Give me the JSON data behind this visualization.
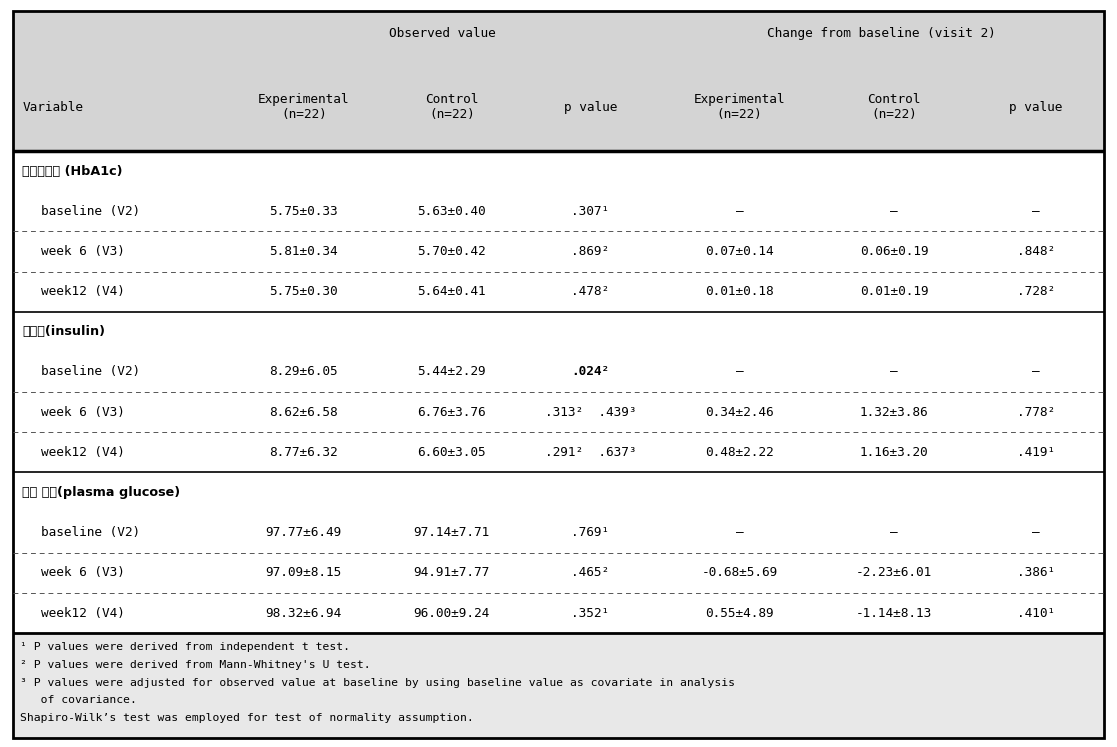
{
  "col_header1": "Observed value",
  "col_header2": "Change from baseline (visit 2)",
  "col_labels": [
    "Variable",
    "Experimental\n(n=22)",
    "Control\n(n=22)",
    "p value",
    "Experimental\n(n=22)",
    "Control\n(n=22)",
    "p value"
  ],
  "rows": [
    {
      "section": "당화혁색소 (HbA1c)",
      "label": "baseline (V2)",
      "obs_exp": "5.75±0.33",
      "obs_ctrl": "5.63±0.40",
      "obs_p": ".307¹",
      "obs_p_bold": false,
      "chg_exp": "–",
      "chg_ctrl": "–",
      "chg_p": "–"
    },
    {
      "section": null,
      "label": "week 6 (V3)",
      "obs_exp": "5.81±0.34",
      "obs_ctrl": "5.70±0.42",
      "obs_p": ".869²",
      "obs_p_bold": false,
      "chg_exp": "0.07±0.14",
      "chg_ctrl": "0.06±0.19",
      "chg_p": ".848²"
    },
    {
      "section": null,
      "label": "week12 (V4)",
      "obs_exp": "5.75±0.30",
      "obs_ctrl": "5.64±0.41",
      "obs_p": ".478²",
      "obs_p_bold": false,
      "chg_exp": "0.01±0.18",
      "chg_ctrl": "0.01±0.19",
      "chg_p": ".728²"
    },
    {
      "section": "인싈린(insulin)",
      "label": "baseline (V2)",
      "obs_exp": "8.29±6.05",
      "obs_ctrl": "5.44±2.29",
      "obs_p": ".024²",
      "obs_p_bold": true,
      "chg_exp": "–",
      "chg_ctrl": "–",
      "chg_p": "–"
    },
    {
      "section": null,
      "label": "week 6 (V3)",
      "obs_exp": "8.62±6.58",
      "obs_ctrl": "6.76±3.76",
      "obs_p": ".313²  .439³",
      "obs_p_bold": false,
      "chg_exp": "0.34±2.46",
      "chg_ctrl": "1.32±3.86",
      "chg_p": ".778²"
    },
    {
      "section": null,
      "label": "week12 (V4)",
      "obs_exp": "8.77±6.32",
      "obs_ctrl": "6.60±3.05",
      "obs_p": ".291²  .637³",
      "obs_p_bold": false,
      "chg_exp": "0.48±2.22",
      "chg_ctrl": "1.16±3.20",
      "chg_p": ".419¹"
    },
    {
      "section": "혁중 혁당(plasma glucose)",
      "label": "baseline (V2)",
      "obs_exp": "97.77±6.49",
      "obs_ctrl": "97.14±7.71",
      "obs_p": ".769¹",
      "obs_p_bold": false,
      "chg_exp": "–",
      "chg_ctrl": "–",
      "chg_p": "–"
    },
    {
      "section": null,
      "label": "week 6 (V3)",
      "obs_exp": "97.09±8.15",
      "obs_ctrl": "94.91±7.77",
      "obs_p": ".465²",
      "obs_p_bold": false,
      "chg_exp": "-0.68±5.69",
      "chg_ctrl": "-2.23±6.01",
      "chg_p": ".386¹"
    },
    {
      "section": null,
      "label": "week12 (V4)",
      "obs_exp": "98.32±6.94",
      "obs_ctrl": "96.00±9.24",
      "obs_p": ".352¹",
      "obs_p_bold": false,
      "chg_exp": "0.55±4.89",
      "chg_ctrl": "-1.14±8.13",
      "chg_p": ".410¹"
    }
  ],
  "footnotes": [
    "¹ P values were derived from independent t test.",
    "² P values were derived from Mann-Whitney's U test.",
    "³ P values were adjusted for observed value at baseline by using baseline value as covariate in analysis",
    "   of covariance.",
    "Shapiro-Wilk’s test was employed for test of normality assumption."
  ],
  "header_bg": "#d4d4d4",
  "footnote_bg": "#e8e8e8",
  "white_bg": "#ffffff",
  "font_size": 9.2,
  "font_size_small": 8.2
}
